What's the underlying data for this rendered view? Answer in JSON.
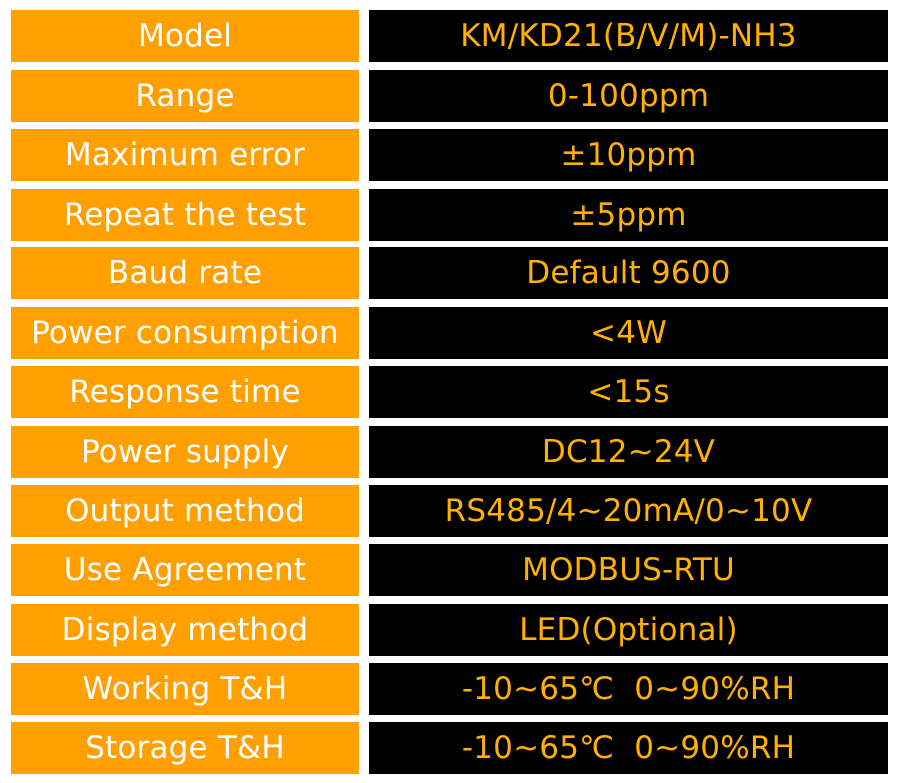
{
  "colors": {
    "label_bg": "#FFA000",
    "label_text": "#FFFFFF",
    "value_bg": "#000000",
    "value_text": "#FFB000"
  },
  "specs": [
    {
      "label": "Model",
      "value": "KM/KD21(B/V/M)-NH3"
    },
    {
      "label": "Range",
      "value": "0-100ppm"
    },
    {
      "label": "Maximum error",
      "value": "±10ppm"
    },
    {
      "label": "Repeat the test",
      "value": "±5ppm"
    },
    {
      "label": "Baud rate",
      "value": "Default 9600"
    },
    {
      "label": "Power consumption",
      "value": "<4W"
    },
    {
      "label": "Response time",
      "value": "<15s"
    },
    {
      "label": "Power supply",
      "value": "DC12~24V"
    },
    {
      "label": "Output method",
      "value": "RS485/4~20mA/0~10V"
    },
    {
      "label": "Use Agreement",
      "value": "MODBUS-RTU"
    },
    {
      "label": "Display method",
      "value": "LED(Optional)"
    },
    {
      "label": "Working T&H",
      "value": "-10~65℃  0~90%RH"
    },
    {
      "label": "Storage T&H",
      "value": "-10~65℃  0~90%RH"
    }
  ]
}
